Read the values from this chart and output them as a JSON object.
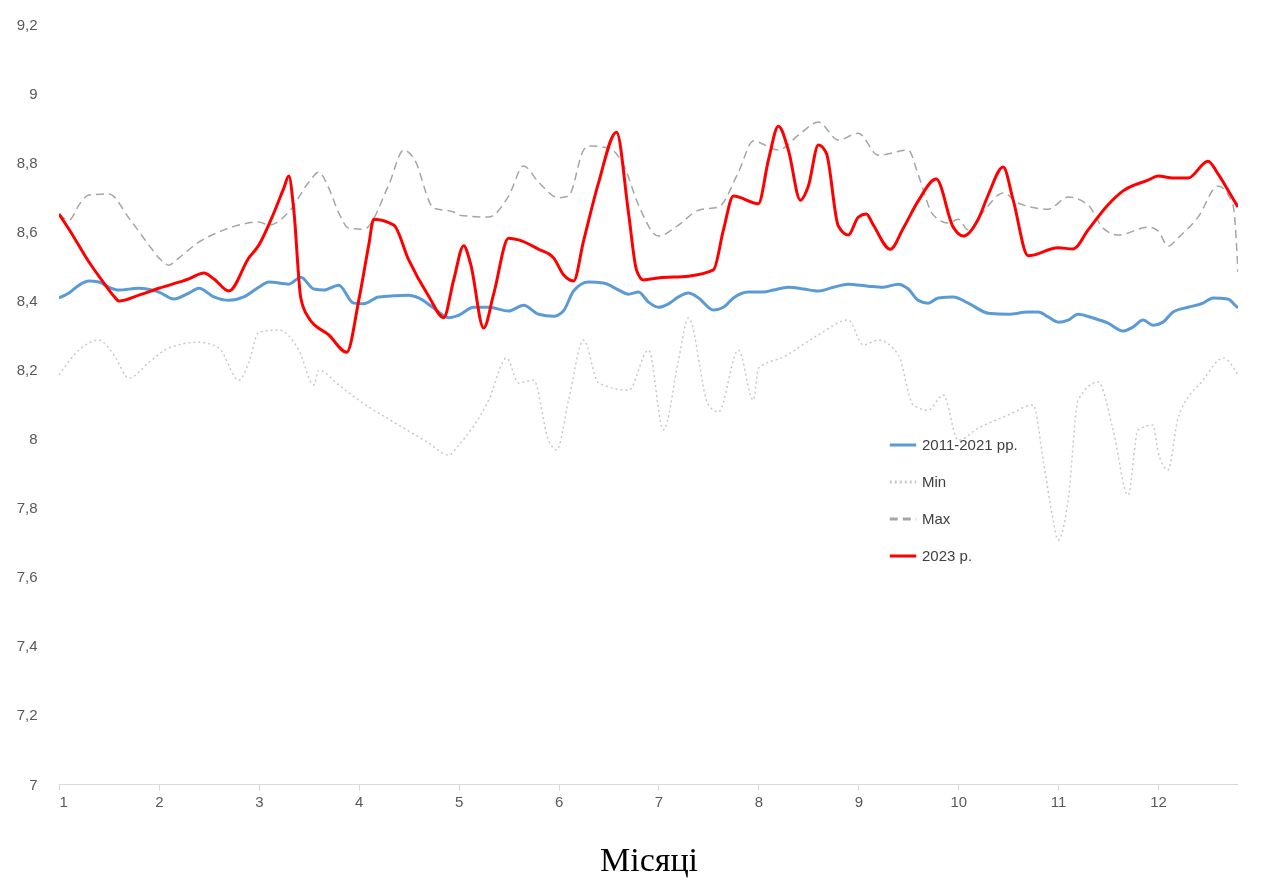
{
  "chart_data": {
    "type": "line",
    "xlabel": "Місяці",
    "xlim": [
      1,
      12.8
    ],
    "xticks": [
      1,
      2,
      3,
      4,
      5,
      6,
      7,
      8,
      9,
      10,
      11,
      12
    ],
    "ylim": [
      7,
      9.2
    ],
    "yticks": [
      7,
      {
        "value": 7.2,
        "label": "7,2"
      },
      {
        "value": 7.4,
        "label": "7,4"
      },
      {
        "value": 7.6,
        "label": "7,6"
      },
      {
        "value": 7.8,
        "label": "7,8"
      },
      8,
      {
        "value": 8.2,
        "label": "8,2"
      },
      {
        "value": 8.4,
        "label": "8,4"
      },
      {
        "value": 8.6,
        "label": "8,6"
      },
      {
        "value": 8.8,
        "label": "8,8"
      },
      9,
      {
        "value": 9.2,
        "label": "9,2"
      }
    ],
    "grid": false,
    "legend": "bottom right",
    "series": [
      {
        "name": "2011-2021 pp.",
        "color": "#5b9bd5",
        "line_style": "solid",
        "x": [
          1.0,
          1.1,
          1.2,
          1.3,
          1.4,
          1.5,
          1.6,
          1.8,
          2.0,
          2.15,
          2.3,
          2.4,
          2.55,
          2.7,
          2.85,
          3.0,
          3.1,
          3.3,
          3.42,
          3.55,
          3.65,
          3.8,
          3.95,
          4.05,
          4.2,
          4.5,
          4.6,
          4.75,
          4.9,
          5.0,
          5.15,
          5.3,
          5.5,
          5.65,
          5.8,
          5.95,
          6.05,
          6.15,
          6.3,
          6.45,
          6.6,
          6.7,
          6.8,
          6.9,
          7.0,
          7.1,
          7.2,
          7.3,
          7.4,
          7.55,
          7.65,
          7.75,
          7.9,
          8.05,
          8.15,
          8.3,
          8.45,
          8.6,
          8.75,
          8.9,
          9.1,
          9.25,
          9.4,
          9.5,
          9.6,
          9.7,
          9.8,
          9.95,
          10.1,
          10.3,
          10.5,
          10.7,
          10.8,
          10.9,
          11.0,
          11.1,
          11.2,
          11.35,
          11.5,
          11.65,
          11.75,
          11.85,
          11.95,
          12.05,
          12.15,
          12.3,
          12.45,
          12.55,
          12.7,
          12.77,
          12.8
        ],
        "values": [
          8.407,
          8.421,
          8.444,
          8.456,
          8.453,
          8.438,
          8.43,
          8.435,
          8.424,
          8.404,
          8.421,
          8.435,
          8.41,
          8.4,
          8.41,
          8.438,
          8.453,
          8.447,
          8.467,
          8.433,
          8.43,
          8.444,
          8.392,
          8.39,
          8.41,
          8.415,
          8.407,
          8.378,
          8.35,
          8.357,
          8.38,
          8.38,
          8.369,
          8.386,
          8.36,
          8.354,
          8.37,
          8.427,
          8.453,
          8.45,
          8.43,
          8.418,
          8.424,
          8.395,
          8.38,
          8.39,
          8.41,
          8.421,
          8.407,
          8.372,
          8.38,
          8.407,
          8.424,
          8.424,
          8.43,
          8.438,
          8.433,
          8.427,
          8.438,
          8.447,
          8.441,
          8.438,
          8.447,
          8.433,
          8.4,
          8.392,
          8.407,
          8.41,
          8.392,
          8.363,
          8.36,
          8.366,
          8.366,
          8.352,
          8.337,
          8.343,
          8.36,
          8.349,
          8.334,
          8.311,
          8.323,
          8.343,
          8.328,
          8.337,
          8.366,
          8.38,
          8.392,
          8.407,
          8.404,
          8.386,
          8.378
        ]
      },
      {
        "name": "Min",
        "color": "#c8c8c8",
        "line_style": "dotted",
        "x": [
          1.0,
          1.2,
          1.4,
          1.55,
          1.7,
          1.9,
          2.1,
          2.4,
          2.6,
          2.8,
          2.9,
          3.0,
          3.2,
          3.4,
          3.55,
          3.6,
          3.8,
          4.0,
          4.4,
          4.7,
          4.9,
          5.0,
          5.3,
          5.48,
          5.6,
          5.75,
          5.9,
          5.98,
          6.1,
          6.25,
          6.4,
          6.7,
          6.9,
          7.05,
          7.2,
          7.3,
          7.5,
          7.6,
          7.8,
          7.95,
          8.0,
          8.25,
          8.6,
          8.9,
          9.05,
          9.2,
          9.4,
          9.55,
          9.7,
          9.85,
          10.0,
          10.2,
          10.5,
          10.75,
          10.85,
          10.95,
          11.0,
          11.1,
          11.2,
          11.4,
          11.55,
          11.7,
          11.8,
          11.95,
          12.0,
          12.1,
          12.2,
          12.45,
          12.65,
          12.8
        ],
        "values": [
          8.184,
          8.256,
          8.285,
          8.242,
          8.175,
          8.221,
          8.262,
          8.279,
          8.262,
          8.169,
          8.221,
          8.308,
          8.314,
          8.256,
          8.155,
          8.198,
          8.155,
          8.111,
          8.039,
          7.987,
          7.952,
          7.981,
          8.111,
          8.233,
          8.161,
          8.169,
          7.995,
          7.967,
          8.111,
          8.285,
          8.161,
          8.14,
          8.256,
          8.025,
          8.227,
          8.349,
          8.097,
          8.077,
          8.256,
          8.111,
          8.204,
          8.236,
          8.3,
          8.343,
          8.271,
          8.285,
          8.242,
          8.097,
          8.082,
          8.126,
          7.995,
          8.03,
          8.068,
          8.097,
          7.938,
          7.764,
          7.706,
          7.822,
          8.111,
          8.164,
          8.025,
          7.836,
          8.025,
          8.039,
          7.961,
          7.909,
          8.059,
          8.169,
          8.233,
          8.184
        ]
      },
      {
        "name": "Max",
        "color": "#a5a5a5",
        "line_style": "dashed",
        "x": [
          1.0,
          1.1,
          1.2,
          1.3,
          1.5,
          1.7,
          1.9,
          2.0,
          2.1,
          2.2,
          2.4,
          2.6,
          2.8,
          3.0,
          3.1,
          3.3,
          3.5,
          3.6,
          3.7,
          3.8,
          3.9,
          4.05,
          4.3,
          4.45,
          4.55,
          4.75,
          4.95,
          5.0,
          5.3,
          5.5,
          5.65,
          5.8,
          6.0,
          6.1,
          6.25,
          6.3,
          6.5,
          6.65,
          6.8,
          7.0,
          7.2,
          7.4,
          7.6,
          7.8,
          7.95,
          8.2,
          8.4,
          8.6,
          8.8,
          9.0,
          9.2,
          9.5,
          9.6,
          9.75,
          9.9,
          10.0,
          10.1,
          10.25,
          10.45,
          10.6,
          10.9,
          11.1,
          11.3,
          11.45,
          11.6,
          11.9,
          12.0,
          12.1,
          12.2,
          12.4,
          12.6,
          12.75,
          12.8
        ],
        "values": [
          8.65,
          8.632,
          8.676,
          8.705,
          8.708,
          8.638,
          8.56,
          8.523,
          8.502,
          8.523,
          8.569,
          8.598,
          8.618,
          8.627,
          8.618,
          8.656,
          8.742,
          8.771,
          8.725,
          8.653,
          8.609,
          8.606,
          8.734,
          8.835,
          8.812,
          8.667,
          8.656,
          8.647,
          8.641,
          8.702,
          8.789,
          8.742,
          8.697,
          8.702,
          8.835,
          8.847,
          8.841,
          8.792,
          8.676,
          8.586,
          8.618,
          8.661,
          8.67,
          8.771,
          8.861,
          8.835,
          8.878,
          8.916,
          8.864,
          8.884,
          8.82,
          8.835,
          8.763,
          8.647,
          8.624,
          8.635,
          8.604,
          8.656,
          8.711,
          8.682,
          8.664,
          8.699,
          8.676,
          8.609,
          8.589,
          8.612,
          8.601,
          8.557,
          8.581,
          8.641,
          8.731,
          8.676,
          8.482
        ]
      },
      {
        "name": "2023 p.",
        "color": "#ff0000",
        "line_style": "solid",
        "x": [
          1.0,
          1.1,
          1.3,
          1.45,
          1.55,
          1.6,
          1.8,
          2.0,
          2.3,
          2.45,
          2.55,
          2.7,
          2.9,
          3.0,
          3.15,
          3.25,
          3.3,
          3.35,
          3.42,
          3.5,
          3.7,
          3.88,
          4.0,
          4.1,
          4.15,
          4.35,
          4.5,
          4.7,
          4.85,
          4.95,
          5.05,
          5.12,
          5.25,
          5.35,
          5.5,
          5.6,
          5.8,
          5.95,
          6.05,
          6.15,
          6.25,
          6.4,
          6.58,
          6.7,
          6.78,
          6.85,
          7.0,
          7.3,
          7.55,
          7.65,
          7.75,
          8.0,
          8.1,
          8.2,
          8.3,
          8.42,
          8.5,
          8.6,
          8.68,
          8.8,
          8.9,
          9.0,
          9.08,
          9.15,
          9.32,
          9.45,
          9.6,
          9.78,
          9.95,
          10.05,
          10.2,
          10.3,
          10.45,
          10.55,
          10.7,
          11.0,
          11.15,
          11.3,
          11.5,
          11.65,
          11.9,
          12.0,
          12.15,
          12.3,
          12.5,
          12.6,
          12.7,
          12.8
        ],
        "values": [
          8.65,
          8.606,
          8.511,
          8.45,
          8.412,
          8.398,
          8.415,
          8.435,
          8.462,
          8.479,
          8.462,
          8.427,
          8.523,
          8.56,
          8.653,
          8.725,
          8.76,
          8.661,
          8.407,
          8.349,
          8.3,
          8.25,
          8.4,
          8.56,
          8.635,
          8.618,
          8.517,
          8.412,
          8.35,
          8.459,
          8.558,
          8.505,
          8.32,
          8.418,
          8.58,
          8.575,
          8.548,
          8.523,
          8.474,
          8.456,
          8.572,
          8.74,
          8.887,
          8.653,
          8.488,
          8.459,
          8.465,
          8.47,
          8.488,
          8.604,
          8.702,
          8.68,
          8.806,
          8.904,
          8.835,
          8.69,
          8.731,
          8.85,
          8.826,
          8.615,
          8.589,
          8.641,
          8.65,
          8.618,
          8.548,
          8.609,
          8.688,
          8.751,
          8.612,
          8.586,
          8.635,
          8.705,
          8.786,
          8.69,
          8.529,
          8.552,
          8.549,
          8.604,
          8.677,
          8.717,
          8.748,
          8.76,
          8.754,
          8.754,
          8.803,
          8.766,
          8.719,
          8.67
        ]
      }
    ]
  }
}
